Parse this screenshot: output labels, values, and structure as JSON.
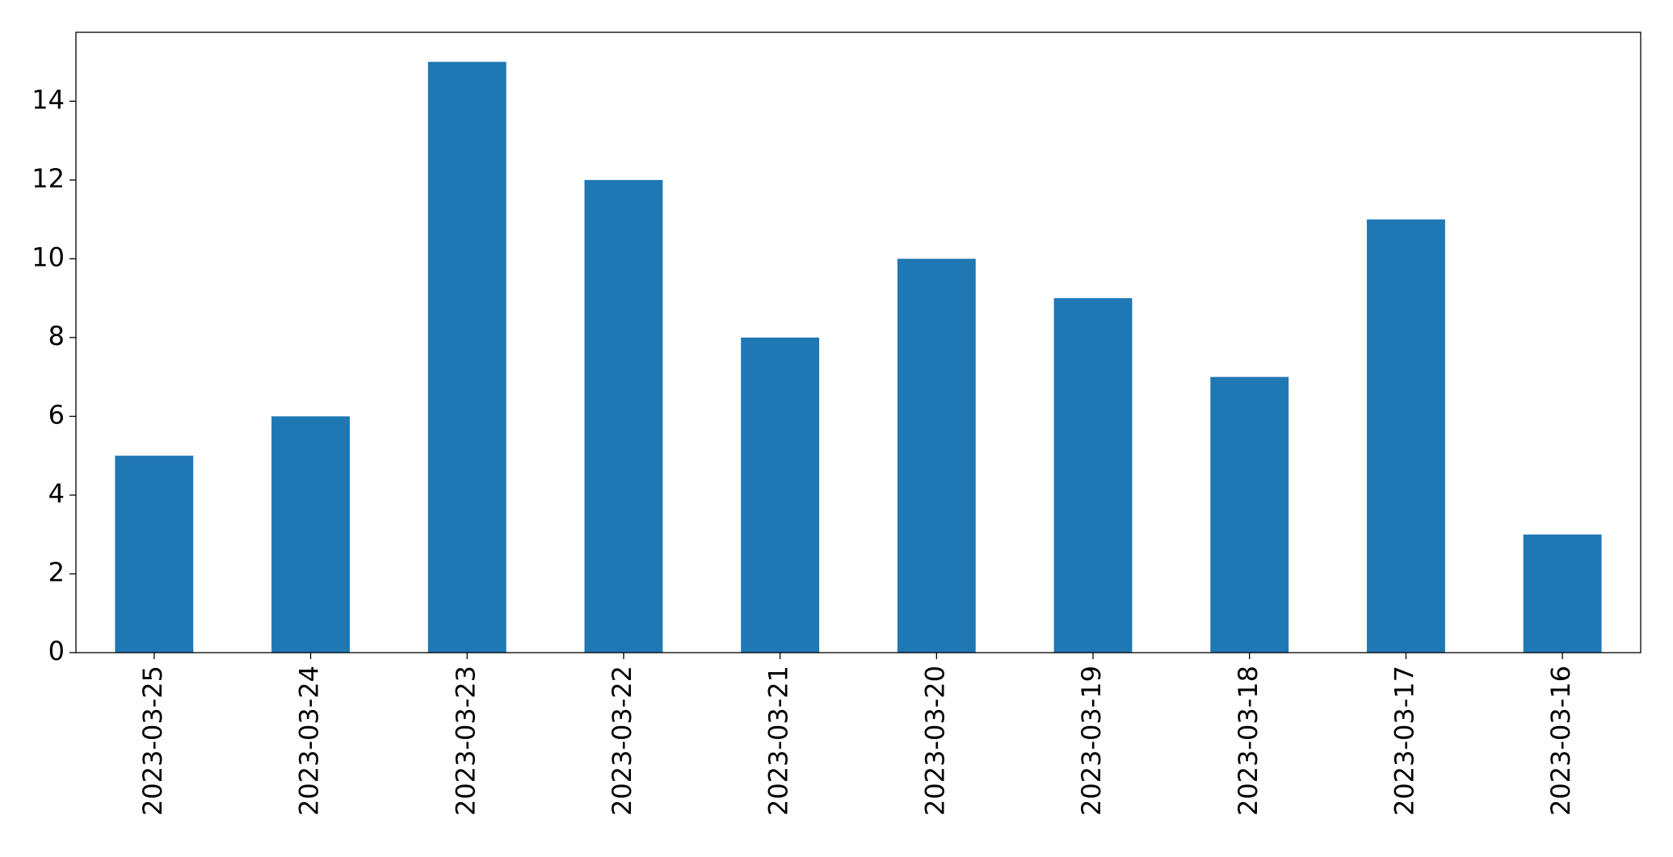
{
  "chart_data": {
    "type": "bar",
    "categories": [
      "2023-03-25",
      "2023-03-24",
      "2023-03-23",
      "2023-03-22",
      "2023-03-21",
      "2023-03-20",
      "2023-03-19",
      "2023-03-18",
      "2023-03-17",
      "2023-03-16"
    ],
    "values": [
      5,
      6,
      15,
      12,
      8,
      10,
      9,
      7,
      11,
      3
    ],
    "color": "#1f77b4",
    "ylim": [
      0,
      15.75
    ],
    "yticks": [
      0,
      2,
      4,
      6,
      8,
      10,
      12,
      14
    ],
    "grid": false
  }
}
